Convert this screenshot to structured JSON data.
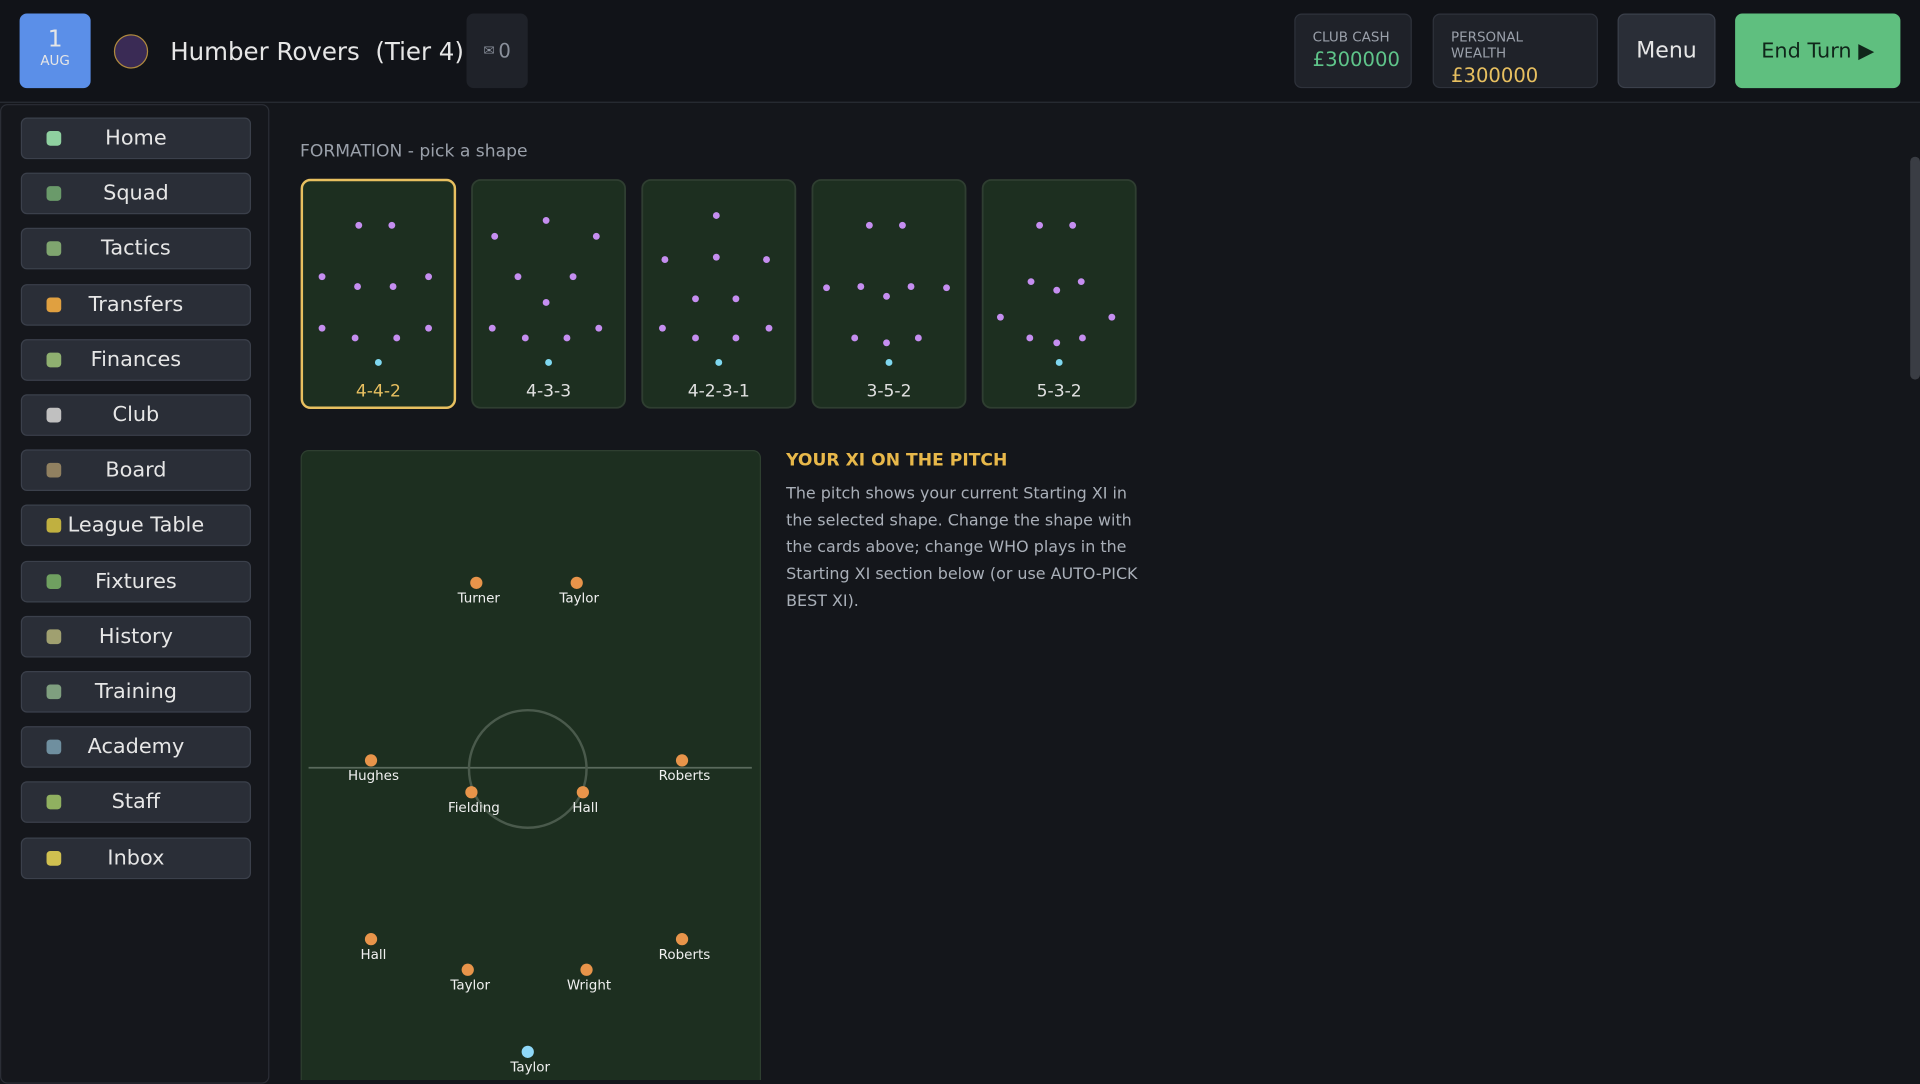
{
  "header": {
    "day": "1",
    "month": "AUG",
    "club": "Humber Rovers",
    "tier": "(Tier 4)",
    "inbox_icon": "✉",
    "inbox": "0",
    "club_cash_label": "CLUB CASH",
    "club_cash": "£300000",
    "wealth_label": "PERSONAL WEALTH",
    "wealth": "£300000",
    "menu": "Menu",
    "end_turn": "End Turn ▶"
  },
  "nav": [
    "Home",
    "Squad",
    "Tactics",
    "Transfers",
    "Finances",
    "Club",
    "Board",
    "League Table",
    "Fixtures",
    "History",
    "Training",
    "Academy",
    "Staff",
    "Inbox"
  ],
  "formation": {
    "label": "FORMATION - pick a shape",
    "cards": [
      "4-4-2",
      "4-3-3",
      "4-2-3-1",
      "3-5-2",
      "5-3-2"
    ]
  },
  "pitch": {
    "players": [
      "Turner",
      "Taylor",
      "Hughes",
      "Fielding",
      "Hall",
      "Roberts",
      "Hall",
      "Taylor",
      "Wright",
      "Roberts",
      "Taylor"
    ]
  },
  "info": {
    "title": "YOUR XI ON THE PITCH",
    "text": "The pitch shows your current Starting XI in the selected shape. Change the shape with the cards above; change WHO plays in the Starting XI section below (or use AUTO-PICK BEST XI)."
  }
}
